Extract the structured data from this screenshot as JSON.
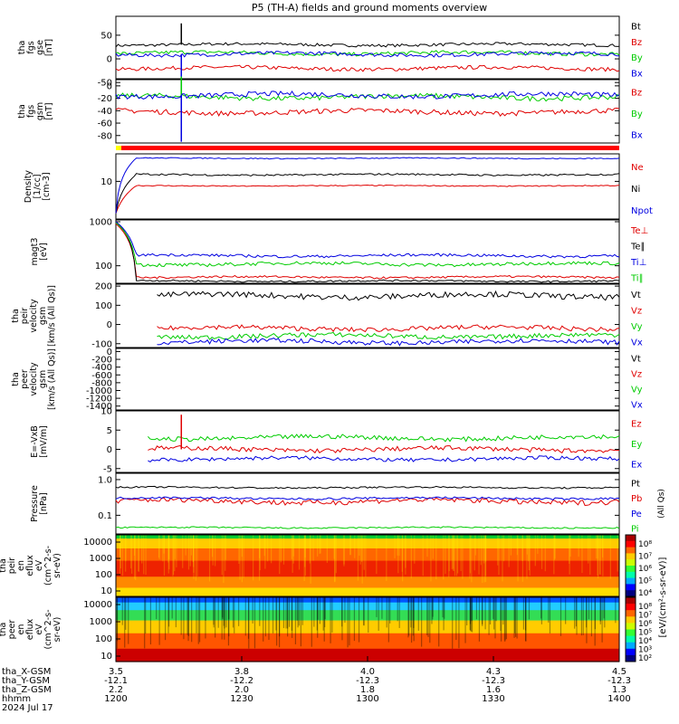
{
  "title": "P5 (TH-A) fields and ground moments overview",
  "chart_data": {
    "type": "line",
    "title": "P5 (TH-A) fields and ground moments overview",
    "x_axis": {
      "ticks": [
        "1200",
        "1230",
        "1300",
        "1330",
        "1400"
      ],
      "date": "2024 Jul 17",
      "rows": [
        {
          "label": "tha_X-GSM",
          "values": [
            "3.5",
            "3.8",
            "4.0",
            "4.3",
            "4.5"
          ]
        },
        {
          "label": "tha_Y-GSM",
          "values": [
            "-12.1",
            "-12.2",
            "-12.3",
            "-12.3",
            "-12.3"
          ]
        },
        {
          "label": "tha_Z-GSM",
          "values": [
            "2.2",
            "2.0",
            "1.8",
            "1.6",
            "1.3"
          ]
        },
        {
          "label": "hhmm",
          "values": [
            "1200",
            "1230",
            "1300",
            "1330",
            "1400"
          ]
        }
      ]
    },
    "panels": [
      {
        "id": "fgs-gse",
        "ylabel": [
          "tha",
          "fgs",
          "gse",
          "[nT]"
        ],
        "ylim": [
          -42,
          90
        ],
        "ticks": [
          50,
          0,
          -50
        ],
        "tick_labels": [
          "50",
          "0",
          "-50"
        ],
        "legend": [
          "Bt",
          "Bz",
          "By",
          "Bx"
        ],
        "series": [
          {
            "name": "Bt",
            "color": "#000000",
            "level": 30,
            "noise": 3,
            "spike": 75
          },
          {
            "name": "Bz",
            "color": "#e00000",
            "level": -20,
            "noise": 4
          },
          {
            "name": "By",
            "color": "#00cc00",
            "level": 12,
            "noise": 4
          },
          {
            "name": "Bx",
            "color": "#0000e0",
            "level": 10,
            "noise": 4,
            "spike": -80
          }
        ]
      },
      {
        "id": "fgs-gsm",
        "ylabel": [
          "tha",
          "fgs",
          "gsm",
          "[nT]"
        ],
        "ylim": [
          -92,
          10
        ],
        "ticks": [
          0,
          -20,
          -40,
          -60,
          -80
        ],
        "tick_labels": [
          "0",
          "-20",
          "-40",
          "-60",
          "-80"
        ],
        "legend": [
          "Bz",
          "By",
          "Bx"
        ],
        "series": [
          {
            "name": "Bz",
            "color": "#e00000",
            "level": -42,
            "noise": 4
          },
          {
            "name": "By",
            "color": "#00cc00",
            "level": -18,
            "noise": 4,
            "spike": 15
          },
          {
            "name": "Bx",
            "color": "#0000e0",
            "level": -15,
            "noise": 4,
            "spike": -90
          }
        ]
      },
      {
        "id": "density",
        "log": true,
        "ylabel": [
          "Density",
          "[1/cc]",
          "[cm-3]"
        ],
        "ylim": [
          1.5,
          40
        ],
        "ticks": [
          10
        ],
        "tick_labels": [
          "10"
        ],
        "legend": [
          "Ne",
          "Ni",
          "Npot"
        ],
        "series": [
          {
            "name": "Ne",
            "color": "#e00000",
            "level": 8,
            "noise": 0.2,
            "rampFrom": 2
          },
          {
            "name": "Ni",
            "color": "#000000",
            "level": 14,
            "noise": 0.6,
            "rampFrom": 2
          },
          {
            "name": "Npot",
            "color": "#0000e0",
            "level": 32,
            "noise": 0.8,
            "rampFrom": 2
          }
        ]
      },
      {
        "id": "temperature",
        "log": true,
        "ylabel": [
          "magt3",
          "[eV]"
        ],
        "ylim": [
          40,
          1100
        ],
        "ticks": [
          1000,
          100
        ],
        "tick_labels": [
          "1000",
          "100"
        ],
        "legend": [
          "Te⊥",
          "Te∥",
          "Ti⊥",
          "Ti∥"
        ],
        "series": [
          {
            "name": "Te⊥",
            "color": "#e00000",
            "level": 55,
            "noise": 3,
            "rampFrom": 900
          },
          {
            "name": "Te∥",
            "color": "#000000",
            "level": 45,
            "noise": 2,
            "rampFrom": 1000
          },
          {
            "name": "Ti⊥",
            "color": "#0000e0",
            "level": 170,
            "noise": 12,
            "rampFrom": 1000
          },
          {
            "name": "Ti∥",
            "color": "#00cc00",
            "level": 110,
            "noise": 10,
            "rampFrom": 950
          }
        ]
      },
      {
        "id": "peir-velocity",
        "ylabel": [
          "tha",
          "peir",
          "velocity",
          "gsm",
          "[km/s (All Qs)]"
        ],
        "ylim": [
          -120,
          210
        ],
        "ticks": [
          200,
          100,
          0,
          -100
        ],
        "tick_labels": [
          "200",
          "100",
          "0",
          "-100"
        ],
        "legend": [
          "Vt",
          "Vz",
          "Vy",
          "Vx"
        ],
        "series": [
          {
            "name": "Vt",
            "color": "#000000",
            "level": 150,
            "noise": 15,
            "start": 0.08
          },
          {
            "name": "Vz",
            "color": "#e00000",
            "level": -20,
            "noise": 12,
            "start": 0.08
          },
          {
            "name": "Vy",
            "color": "#00cc00",
            "level": -60,
            "noise": 12,
            "start": 0.08
          },
          {
            "name": "Vx",
            "color": "#0000e0",
            "level": -90,
            "noise": 12,
            "start": 0.08
          }
        ]
      },
      {
        "id": "peer-velocity",
        "ylabel": [
          "tha",
          "peer",
          "velocity",
          "gsm",
          "[km/s (All Qs)]"
        ],
        "ylim": [
          -1500,
          80
        ],
        "ticks": [
          0,
          -200,
          -400,
          -600,
          -800,
          -1000,
          -1200,
          -1400
        ],
        "tick_labels": [
          "0",
          "-200",
          "-400",
          "-600",
          "-800",
          "-1000",
          "-1200",
          "-1400"
        ],
        "legend": [
          "Vt",
          "Vz",
          "Vy",
          "Vx"
        ],
        "series": []
      },
      {
        "id": "efield",
        "ylabel": [
          "E=-VxB",
          "[mV/m]"
        ],
        "ylim": [
          -6,
          10
        ],
        "ticks": [
          10,
          5,
          0,
          -5
        ],
        "tick_labels": [
          "10",
          "5",
          "0",
          "-5"
        ],
        "legend": [
          "Ez",
          "Ey",
          "Ex"
        ],
        "series": [
          {
            "name": "Ey",
            "color": "#00cc00",
            "level": 3,
            "noise": 0.6,
            "start": 0.06
          },
          {
            "name": "Ez",
            "color": "#e00000",
            "level": 0,
            "noise": 0.6,
            "start": 0.06,
            "spike": 9
          },
          {
            "name": "Ex",
            "color": "#0000e0",
            "level": -2.5,
            "noise": 0.5,
            "start": 0.06
          }
        ]
      },
      {
        "id": "pressure",
        "log": true,
        "ylabel": [
          "Pressure",
          "[nPa]"
        ],
        "ylim": [
          0.03,
          1.5
        ],
        "ticks": [
          1.0,
          0.1
        ],
        "tick_labels": [
          "1.0",
          "0.1"
        ],
        "legend": [
          "Pt",
          "Pb",
          "Pe",
          "Pi"
        ],
        "legend_note": "(All Qs)",
        "series": [
          {
            "name": "Pt",
            "color": "#000000",
            "level": 0.6,
            "noise": 0.03
          },
          {
            "name": "Pb",
            "color": "#e00000",
            "level": 0.25,
            "noise": 0.04
          },
          {
            "name": "Pe",
            "color": "#0000e0",
            "level": 0.3,
            "noise": 0.02
          },
          {
            "name": "Pi",
            "color": "#00cc00",
            "level": 0.045,
            "noise": 0.002
          }
        ]
      },
      {
        "id": "peir-spec",
        "spectrogram": true,
        "ylabel": [
          "tha",
          "peir",
          "en",
          "eflux",
          "eV",
          "(cm^2-s-",
          "sr-eV)"
        ],
        "ticks": [
          "10000",
          "1000",
          "100",
          "10"
        ]
      },
      {
        "id": "peer-spec",
        "spectrogram": true,
        "ylabel": [
          "tha",
          "peer",
          "en",
          "eflux",
          "eV",
          "(cm^2-s-",
          "sr-eV)"
        ],
        "ticks": [
          "10000",
          "1000",
          "100",
          "10"
        ]
      }
    ],
    "colorbars": [
      {
        "ticks": [
          "10⁸",
          "10⁷",
          "10⁶",
          "10⁵",
          "10⁴"
        ]
      },
      {
        "ticks": [
          "10⁸",
          "10⁷",
          "10⁶",
          "10⁵",
          "10⁴",
          "10³",
          "10²"
        ]
      }
    ],
    "colorbar_label": "[eV/(cm²-s-sr-eV)]"
  },
  "colors": {
    "black": "#000000",
    "red": "#e00000",
    "green": "#00cc00",
    "blue": "#0000e0"
  }
}
